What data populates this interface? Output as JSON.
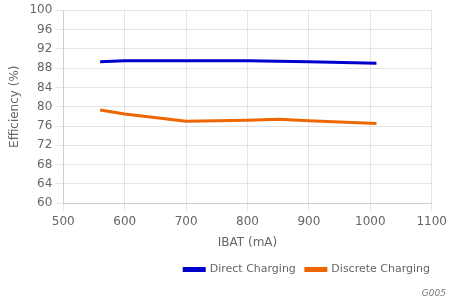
{
  "chart_data": {
    "type": "line",
    "x": [
      560,
      600,
      700,
      800,
      850,
      900,
      1010
    ],
    "series": [
      {
        "name": "Direct Charging",
        "color": "#0000cc",
        "values": [
          89.3,
          89.5,
          89.5,
          89.5,
          89.4,
          89.3,
          89.0
        ]
      },
      {
        "name": "Discrete Charging",
        "color": "#ee6600",
        "values": [
          79.3,
          78.5,
          77.0,
          77.2,
          77.4,
          77.1,
          76.5
        ]
      }
    ],
    "xlabel": "IBAT (mA)",
    "ylabel": "Efficiency (%)",
    "xlim": [
      500,
      1100
    ],
    "xticks": [
      500,
      600,
      700,
      800,
      900,
      1000,
      1100
    ],
    "ylim": [
      60,
      100
    ],
    "yticks": [
      60,
      64,
      68,
      72,
      76,
      80,
      84,
      88,
      92,
      96,
      100
    ],
    "grid": true,
    "legend": "lower right",
    "annotations": [
      "G005"
    ]
  }
}
